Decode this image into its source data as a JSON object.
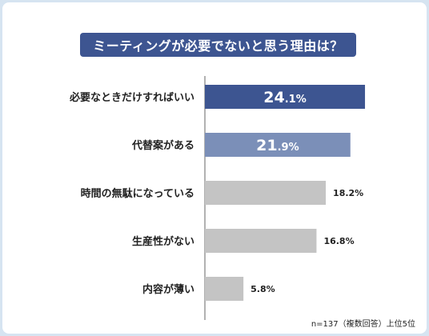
{
  "chart_data": {
    "type": "bar",
    "orientation": "horizontal",
    "title": "ミーティングが必要でないと思う理由は？",
    "categories": [
      "必要なときだけすればいい",
      "代替案がある",
      "時間の無駄になっている",
      "生産性がない",
      "内容が薄い"
    ],
    "values": [
      24.1,
      21.9,
      18.2,
      16.8,
      5.8
    ],
    "value_labels": [
      "24.1%",
      "21.9%",
      "18.2%",
      "16.8%",
      "5.8%"
    ],
    "unit": "%",
    "xlim": [
      0,
      26
    ],
    "grid": false,
    "note": "n=137（複数回答）上位5位",
    "colors": {
      "bar_1": "#3d5591",
      "bar_2": "#7b8fb8",
      "bar_rest": "#c4c4c4",
      "title_bg": "#3d5591",
      "axis": "#666666",
      "border": "#d6e4f1"
    }
  }
}
